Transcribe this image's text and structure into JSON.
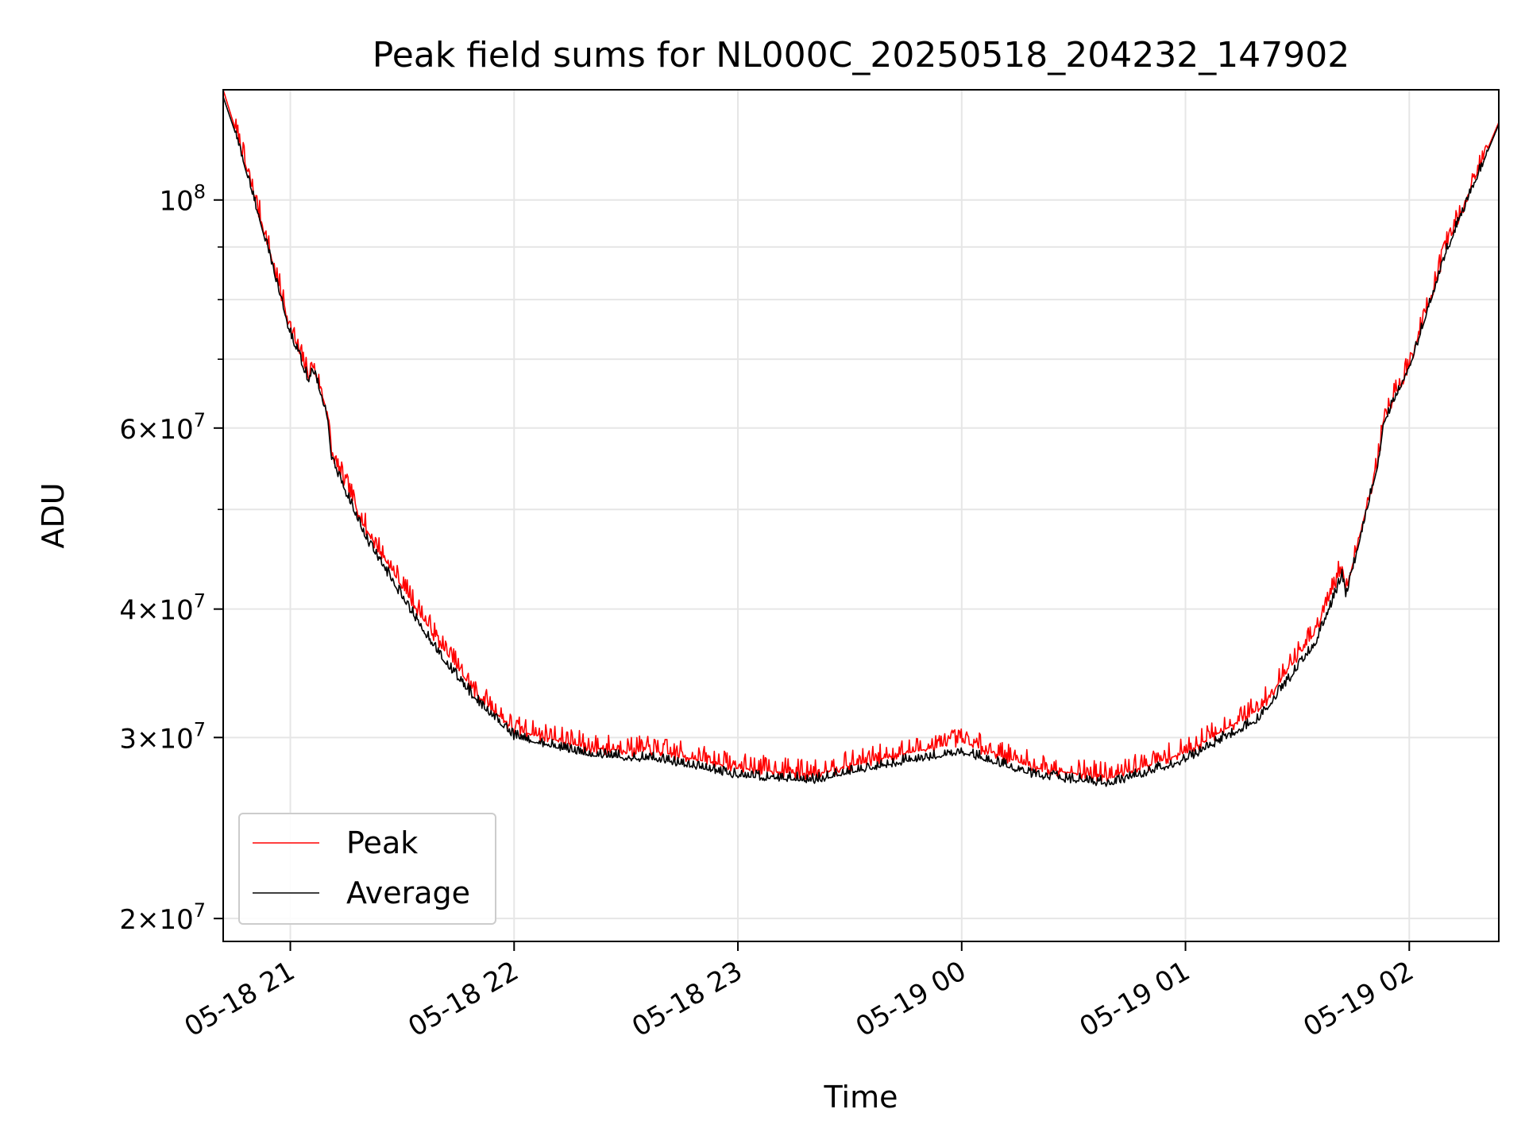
{
  "chart_data": {
    "type": "line",
    "title": "Peak field sums for NL000C_20250518_204232_147902",
    "xlabel": "Time",
    "ylabel": "ADU",
    "yscale": "log",
    "x_range": [
      "2025-05-18 20:42",
      "2025-05-19 02:24"
    ],
    "ylim": [
      19000000,
      128000000
    ],
    "x_ticks": [
      {
        "t": "2025-05-18 21:00",
        "label": "05-18 21"
      },
      {
        "t": "2025-05-18 22:00",
        "label": "05-18 22"
      },
      {
        "t": "2025-05-18 23:00",
        "label": "05-18 23"
      },
      {
        "t": "2025-05-19 00:00",
        "label": "05-19 00"
      },
      {
        "t": "2025-05-19 01:00",
        "label": "05-19 01"
      },
      {
        "t": "2025-05-19 02:00",
        "label": "05-19 02"
      }
    ],
    "y_ticks": [
      {
        "value": 20000000,
        "mantissa": "2",
        "exponent": "7"
      },
      {
        "value": 30000000,
        "mantissa": "3",
        "exponent": "7"
      },
      {
        "value": 40000000,
        "mantissa": "4",
        "exponent": "7"
      },
      {
        "value": 60000000,
        "mantissa": "6",
        "exponent": "7"
      },
      {
        "value": 100000000,
        "mantissa": "",
        "exponent": "8"
      }
    ],
    "y_minor_ticks": [
      50000000,
      70000000,
      80000000,
      90000000
    ],
    "grid": true,
    "legend_position": "lower-left",
    "series": [
      {
        "name": "Peak",
        "color": "#ff0000",
        "noise": 0.035,
        "points": [
          [
            "2025-05-18 20:42",
            128000000
          ],
          [
            "2025-05-18 20:45",
            118000000
          ],
          [
            "2025-05-18 20:52",
            96000000
          ],
          [
            "2025-05-18 21:00",
            75000000
          ],
          [
            "2025-05-18 21:05",
            67000000
          ],
          [
            "2025-05-18 21:06",
            69000000
          ],
          [
            "2025-05-18 21:10",
            62000000
          ],
          [
            "2025-05-18 21:11",
            56500000
          ],
          [
            "2025-05-18 21:20",
            48000000
          ],
          [
            "2025-05-18 21:30",
            42000000
          ],
          [
            "2025-05-18 21:40",
            37000000
          ],
          [
            "2025-05-18 21:50",
            33000000
          ],
          [
            "2025-05-18 22:00",
            30500000
          ],
          [
            "2025-05-18 22:20",
            29300000
          ],
          [
            "2025-05-18 22:40",
            29000000
          ],
          [
            "2025-05-18 23:00",
            28000000
          ],
          [
            "2025-05-18 23:20",
            27600000
          ],
          [
            "2025-05-18 23:40",
            28700000
          ],
          [
            "2025-05-19 00:00",
            29700000
          ],
          [
            "2025-05-19 00:20",
            28000000
          ],
          [
            "2025-05-19 00:40",
            27400000
          ],
          [
            "2025-05-19 01:00",
            29000000
          ],
          [
            "2025-05-19 01:20",
            32000000
          ],
          [
            "2025-05-19 01:35",
            38000000
          ],
          [
            "2025-05-19 01:42",
            44000000
          ],
          [
            "2025-05-19 01:43",
            41500000
          ],
          [
            "2025-05-19 01:52",
            56500000
          ],
          [
            "2025-05-19 01:53",
            61000000
          ],
          [
            "2025-05-19 02:00",
            69000000
          ],
          [
            "2025-05-19 02:10",
            90000000
          ],
          [
            "2025-05-19 02:24",
            119000000
          ]
        ]
      },
      {
        "name": "Average",
        "color": "#000000",
        "noise": 0.018,
        "points": [
          [
            "2025-05-18 20:42",
            126000000
          ],
          [
            "2025-05-18 20:45",
            117000000
          ],
          [
            "2025-05-18 20:52",
            95000000
          ],
          [
            "2025-05-18 21:00",
            74000000
          ],
          [
            "2025-05-18 21:05",
            66500000
          ],
          [
            "2025-05-18 21:06",
            68500000
          ],
          [
            "2025-05-18 21:10",
            61500000
          ],
          [
            "2025-05-18 21:11",
            56000000
          ],
          [
            "2025-05-18 21:20",
            47000000
          ],
          [
            "2025-05-18 21:30",
            41000000
          ],
          [
            "2025-05-18 21:40",
            36000000
          ],
          [
            "2025-05-18 21:50",
            32500000
          ],
          [
            "2025-05-18 22:00",
            30000000
          ],
          [
            "2025-05-18 22:20",
            28800000
          ],
          [
            "2025-05-18 22:40",
            28500000
          ],
          [
            "2025-05-18 23:00",
            27500000
          ],
          [
            "2025-05-18 23:20",
            27200000
          ],
          [
            "2025-05-18 23:40",
            28200000
          ],
          [
            "2025-05-19 00:00",
            29000000
          ],
          [
            "2025-05-19 00:20",
            27500000
          ],
          [
            "2025-05-19 00:40",
            27000000
          ],
          [
            "2025-05-19 01:00",
            28500000
          ],
          [
            "2025-05-19 01:20",
            31300000
          ],
          [
            "2025-05-19 01:35",
            37000000
          ],
          [
            "2025-05-19 01:42",
            43000000
          ],
          [
            "2025-05-19 01:43",
            41000000
          ],
          [
            "2025-05-19 01:52",
            56000000
          ],
          [
            "2025-05-19 01:53",
            60500000
          ],
          [
            "2025-05-19 02:00",
            68500000
          ],
          [
            "2025-05-19 02:10",
            89000000
          ],
          [
            "2025-05-19 02:24",
            118500000
          ]
        ]
      }
    ]
  }
}
